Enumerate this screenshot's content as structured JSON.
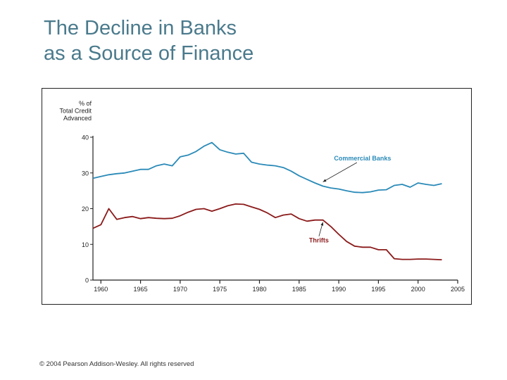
{
  "slide": {
    "title_line1": "The Decline in Banks",
    "title_line2": "as a Source of Finance",
    "footer": "© 2004 Pearson Addison-Wesley. All rights reserved"
  },
  "chart_data": {
    "type": "line",
    "title": "",
    "xlabel": "",
    "ylabel_lines": [
      "% of",
      "Total Credit",
      "Advanced"
    ],
    "xlim": [
      1959,
      2005
    ],
    "ylim": [
      0,
      40
    ],
    "x_ticks": [
      1960,
      1965,
      1970,
      1975,
      1980,
      1985,
      1990,
      1995,
      2000,
      2005
    ],
    "y_ticks": [
      0,
      10,
      20,
      30,
      40
    ],
    "grid": false,
    "legend": "inline annotations",
    "series": [
      {
        "name": "Commercial Banks",
        "color": "#2a8ab8",
        "x": [
          1959,
          1960,
          1961,
          1962,
          1963,
          1964,
          1965,
          1966,
          1967,
          1968,
          1969,
          1970,
          1971,
          1972,
          1973,
          1974,
          1975,
          1976,
          1977,
          1978,
          1979,
          1980,
          1981,
          1982,
          1983,
          1984,
          1985,
          1986,
          1987,
          1988,
          1989,
          1990,
          1991,
          1992,
          1993,
          1994,
          1995,
          1996,
          1997,
          1998,
          1999,
          2000,
          2001,
          2002,
          2003
        ],
        "values": [
          28.5,
          29,
          29.5,
          29.8,
          30,
          30.5,
          31,
          31,
          32,
          32.5,
          32,
          34.5,
          35,
          36,
          37.5,
          38.5,
          36.5,
          35.8,
          35.3,
          35.5,
          33,
          32.5,
          32.2,
          32,
          31.5,
          30.5,
          29.2,
          28.2,
          27.2,
          26.3,
          25.8,
          25.5,
          25,
          24.6,
          24.5,
          24.7,
          25.2,
          25.3,
          26.5,
          26.8,
          26,
          27.2,
          26.8,
          26.5,
          27
        ]
      },
      {
        "name": "Thrifts",
        "color": "#8b1a1a",
        "x": [
          1959,
          1960,
          1961,
          1962,
          1963,
          1964,
          1965,
          1966,
          1967,
          1968,
          1969,
          1970,
          1971,
          1972,
          1973,
          1974,
          1975,
          1976,
          1977,
          1978,
          1979,
          1980,
          1981,
          1982,
          1983,
          1984,
          1985,
          1986,
          1987,
          1988,
          1989,
          1990,
          1991,
          1992,
          1993,
          1994,
          1995,
          1996,
          1997,
          1998,
          1999,
          2000,
          2001,
          2002,
          2003
        ],
        "values": [
          14.5,
          15.5,
          20,
          17,
          17.5,
          17.8,
          17.2,
          17.5,
          17.3,
          17.2,
          17.3,
          18,
          19,
          19.8,
          20,
          19.3,
          20,
          20.8,
          21.3,
          21.2,
          20.5,
          19.8,
          18.8,
          17.5,
          18.2,
          18.5,
          17.2,
          16.5,
          16.8,
          16.8,
          15,
          12.8,
          10.8,
          9.5,
          9.2,
          9.2,
          8.5,
          8.5,
          6,
          5.8,
          5.8,
          5.9,
          5.9,
          5.8,
          5.7
        ]
      }
    ],
    "annotations": [
      {
        "text": "Commercial Banks",
        "x": 1993,
        "y": 33.5,
        "target_x": 1988,
        "target_y": 27.5
      },
      {
        "text": "Thrifts",
        "x": 1987.5,
        "y": 10.5,
        "target_x": 1988,
        "target_y": 16.2
      }
    ]
  }
}
